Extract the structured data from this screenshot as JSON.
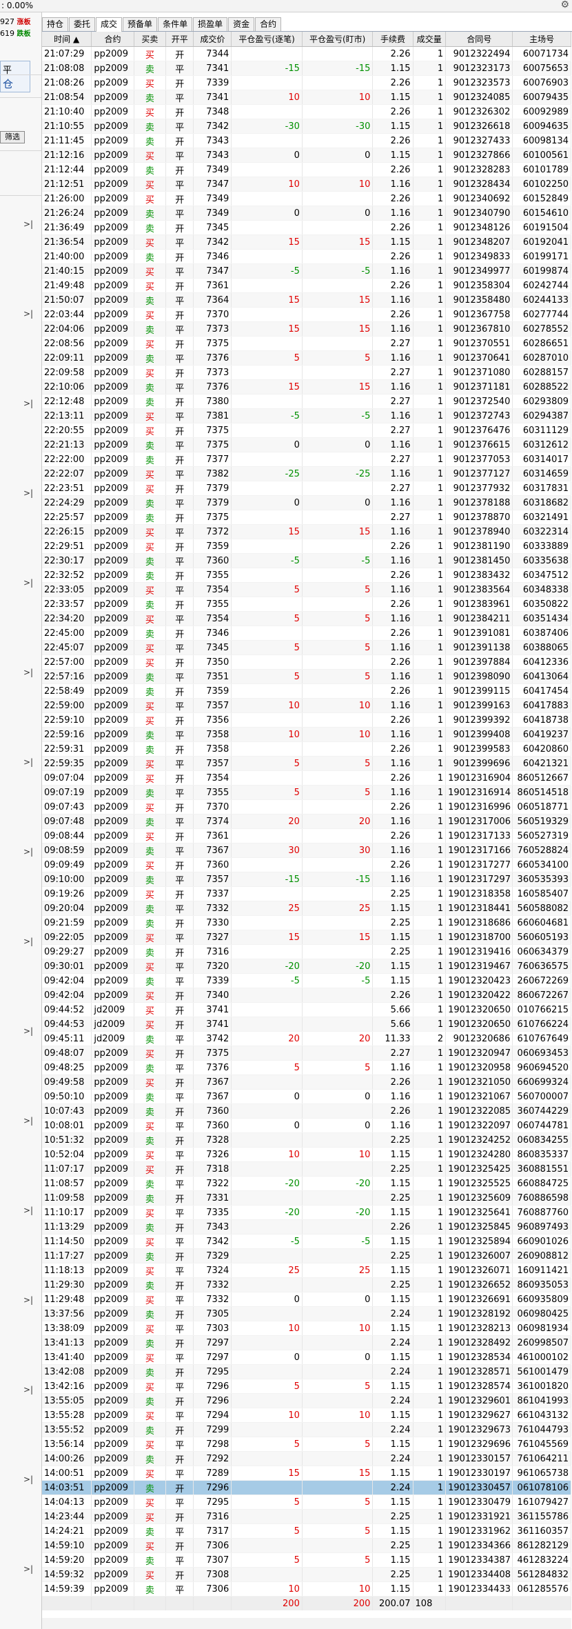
{
  "topbar": {
    "percent": ": 0.00%",
    "settings_icon": "gear-icon"
  },
  "left": {
    "row1_num": "927",
    "row1_tag": "涨板",
    "row2_num": "619",
    "row2_tag": "跌板",
    "box_top": "平",
    "box_bottom": "仓",
    "filter_btn": "筛选",
    "arrow": ">|"
  },
  "tabs": [
    "持仓",
    "委托",
    "成交",
    "预备单",
    "条件单",
    "损盈单",
    "资金",
    "合约"
  ],
  "active_tab": 2,
  "columns": [
    "时间 ▲",
    "合约",
    "买卖",
    "开平",
    "成交价",
    "平仓盈亏(逐笔)",
    "平仓盈亏(盯市)",
    "手续费",
    "成交量",
    "合同号",
    "主场号"
  ],
  "rows": [
    [
      "21:07:29",
      "pp2009",
      "买",
      "开",
      "7344",
      "",
      "",
      "2.26",
      "1",
      "9012322494",
      "60071734"
    ],
    [
      "21:08:08",
      "pp2009",
      "卖",
      "平",
      "7341",
      "-15",
      "-15",
      "1.15",
      "1",
      "9012323173",
      "60075653"
    ],
    [
      "21:08:26",
      "pp2009",
      "买",
      "开",
      "7339",
      "",
      "",
      "2.26",
      "1",
      "9012323573",
      "60076903"
    ],
    [
      "21:08:54",
      "pp2009",
      "卖",
      "平",
      "7341",
      "10",
      "10",
      "1.15",
      "1",
      "9012324085",
      "60079435"
    ],
    [
      "21:10:40",
      "pp2009",
      "买",
      "开",
      "7348",
      "",
      "",
      "2.26",
      "1",
      "9012326302",
      "60092989"
    ],
    [
      "21:10:55",
      "pp2009",
      "卖",
      "平",
      "7342",
      "-30",
      "-30",
      "1.15",
      "1",
      "9012326618",
      "60094635"
    ],
    [
      "21:11:45",
      "pp2009",
      "卖",
      "开",
      "7343",
      "",
      "",
      "2.26",
      "1",
      "9012327433",
      "60098134"
    ],
    [
      "21:12:16",
      "pp2009",
      "买",
      "平",
      "7343",
      "0",
      "0",
      "1.15",
      "1",
      "9012327866",
      "60100561"
    ],
    [
      "21:12:44",
      "pp2009",
      "卖",
      "开",
      "7349",
      "",
      "",
      "2.26",
      "1",
      "9012328283",
      "60101789"
    ],
    [
      "21:12:51",
      "pp2009",
      "买",
      "平",
      "7347",
      "10",
      "10",
      "1.16",
      "1",
      "9012328434",
      "60102250"
    ],
    [
      "21:26:00",
      "pp2009",
      "买",
      "开",
      "7349",
      "",
      "",
      "2.26",
      "1",
      "9012340692",
      "60152849"
    ],
    [
      "21:26:24",
      "pp2009",
      "卖",
      "平",
      "7349",
      "0",
      "0",
      "1.16",
      "1",
      "9012340790",
      "60154610"
    ],
    [
      "21:36:49",
      "pp2009",
      "卖",
      "开",
      "7345",
      "",
      "",
      "2.26",
      "1",
      "9012348126",
      "60191504"
    ],
    [
      "21:36:54",
      "pp2009",
      "买",
      "平",
      "7342",
      "15",
      "15",
      "1.15",
      "1",
      "9012348207",
      "60192041"
    ],
    [
      "21:40:00",
      "pp2009",
      "卖",
      "开",
      "7346",
      "",
      "",
      "2.26",
      "1",
      "9012349833",
      "60199171"
    ],
    [
      "21:40:15",
      "pp2009",
      "买",
      "平",
      "7347",
      "-5",
      "-5",
      "1.16",
      "1",
      "9012349977",
      "60199874"
    ],
    [
      "21:49:48",
      "pp2009",
      "买",
      "开",
      "7361",
      "",
      "",
      "2.26",
      "1",
      "9012358304",
      "60242744"
    ],
    [
      "21:50:07",
      "pp2009",
      "卖",
      "平",
      "7364",
      "15",
      "15",
      "1.16",
      "1",
      "9012358480",
      "60244133"
    ],
    [
      "22:03:44",
      "pp2009",
      "买",
      "开",
      "7370",
      "",
      "",
      "2.26",
      "1",
      "9012367758",
      "60277744"
    ],
    [
      "22:04:06",
      "pp2009",
      "卖",
      "平",
      "7373",
      "15",
      "15",
      "1.16",
      "1",
      "9012367810",
      "60278552"
    ],
    [
      "22:08:56",
      "pp2009",
      "买",
      "开",
      "7375",
      "",
      "",
      "2.27",
      "1",
      "9012370551",
      "60286651"
    ],
    [
      "22:09:11",
      "pp2009",
      "卖",
      "平",
      "7376",
      "5",
      "5",
      "1.16",
      "1",
      "9012370641",
      "60287010"
    ],
    [
      "22:09:58",
      "pp2009",
      "买",
      "开",
      "7373",
      "",
      "",
      "2.27",
      "1",
      "9012371080",
      "60288157"
    ],
    [
      "22:10:06",
      "pp2009",
      "卖",
      "平",
      "7376",
      "15",
      "15",
      "1.16",
      "1",
      "9012371181",
      "60288522"
    ],
    [
      "22:12:48",
      "pp2009",
      "卖",
      "开",
      "7380",
      "",
      "",
      "2.27",
      "1",
      "9012372540",
      "60293809"
    ],
    [
      "22:13:11",
      "pp2009",
      "买",
      "平",
      "7381",
      "-5",
      "-5",
      "1.16",
      "1",
      "9012372743",
      "60294387"
    ],
    [
      "22:20:55",
      "pp2009",
      "买",
      "开",
      "7375",
      "",
      "",
      "2.27",
      "1",
      "9012376476",
      "60311129"
    ],
    [
      "22:21:13",
      "pp2009",
      "卖",
      "平",
      "7375",
      "0",
      "0",
      "1.16",
      "1",
      "9012376615",
      "60312612"
    ],
    [
      "22:22:00",
      "pp2009",
      "卖",
      "开",
      "7377",
      "",
      "",
      "2.27",
      "1",
      "9012377053",
      "60314017"
    ],
    [
      "22:22:07",
      "pp2009",
      "买",
      "平",
      "7382",
      "-25",
      "-25",
      "1.16",
      "1",
      "9012377127",
      "60314659"
    ],
    [
      "22:23:51",
      "pp2009",
      "买",
      "开",
      "7379",
      "",
      "",
      "2.27",
      "1",
      "9012377932",
      "60317831"
    ],
    [
      "22:24:29",
      "pp2009",
      "卖",
      "平",
      "7379",
      "0",
      "0",
      "1.16",
      "1",
      "9012378188",
      "60318682"
    ],
    [
      "22:25:57",
      "pp2009",
      "卖",
      "开",
      "7375",
      "",
      "",
      "2.27",
      "1",
      "9012378870",
      "60321491"
    ],
    [
      "22:26:15",
      "pp2009",
      "买",
      "平",
      "7372",
      "15",
      "15",
      "1.16",
      "1",
      "9012378940",
      "60322314"
    ],
    [
      "22:29:51",
      "pp2009",
      "买",
      "开",
      "7359",
      "",
      "",
      "2.26",
      "1",
      "9012381190",
      "60333889"
    ],
    [
      "22:30:17",
      "pp2009",
      "卖",
      "平",
      "7360",
      "-5",
      "-5",
      "1.16",
      "1",
      "9012381450",
      "60335638"
    ],
    [
      "22:32:52",
      "pp2009",
      "卖",
      "开",
      "7355",
      "",
      "",
      "2.26",
      "1",
      "9012383432",
      "60347512"
    ],
    [
      "22:33:05",
      "pp2009",
      "买",
      "平",
      "7354",
      "5",
      "5",
      "1.16",
      "1",
      "9012383564",
      "60348338"
    ],
    [
      "22:33:57",
      "pp2009",
      "卖",
      "开",
      "7355",
      "",
      "",
      "2.26",
      "1",
      "9012383961",
      "60350822"
    ],
    [
      "22:34:20",
      "pp2009",
      "买",
      "平",
      "7354",
      "5",
      "5",
      "1.16",
      "1",
      "9012384211",
      "60351434"
    ],
    [
      "22:45:00",
      "pp2009",
      "卖",
      "开",
      "7346",
      "",
      "",
      "2.26",
      "1",
      "9012391081",
      "60387406"
    ],
    [
      "22:45:07",
      "pp2009",
      "买",
      "平",
      "7345",
      "5",
      "5",
      "1.16",
      "1",
      "9012391138",
      "60388065"
    ],
    [
      "22:57:00",
      "pp2009",
      "买",
      "开",
      "7350",
      "",
      "",
      "2.26",
      "1",
      "9012397884",
      "60412336"
    ],
    [
      "22:57:16",
      "pp2009",
      "卖",
      "平",
      "7351",
      "5",
      "5",
      "1.16",
      "1",
      "9012398090",
      "60413064"
    ],
    [
      "22:58:49",
      "pp2009",
      "卖",
      "开",
      "7359",
      "",
      "",
      "2.26",
      "1",
      "9012399115",
      "60417454"
    ],
    [
      "22:59:00",
      "pp2009",
      "买",
      "平",
      "7357",
      "10",
      "10",
      "1.16",
      "1",
      "9012399163",
      "60417883"
    ],
    [
      "22:59:10",
      "pp2009",
      "买",
      "开",
      "7356",
      "",
      "",
      "2.26",
      "1",
      "9012399392",
      "60418738"
    ],
    [
      "22:59:16",
      "pp2009",
      "卖",
      "平",
      "7358",
      "10",
      "10",
      "1.16",
      "1",
      "9012399408",
      "60419237"
    ],
    [
      "22:59:31",
      "pp2009",
      "卖",
      "开",
      "7358",
      "",
      "",
      "2.26",
      "1",
      "9012399583",
      "60420860"
    ],
    [
      "22:59:35",
      "pp2009",
      "买",
      "平",
      "7357",
      "5",
      "5",
      "1.16",
      "1",
      "9012399696",
      "60421321"
    ],
    [
      "09:07:04",
      "pp2009",
      "买",
      "开",
      "7354",
      "",
      "",
      "2.26",
      "1",
      "19012316904",
      "860512667"
    ],
    [
      "09:07:19",
      "pp2009",
      "卖",
      "平",
      "7355",
      "5",
      "5",
      "1.16",
      "1",
      "19012316914",
      "860514518"
    ],
    [
      "09:07:43",
      "pp2009",
      "买",
      "开",
      "7370",
      "",
      "",
      "2.26",
      "1",
      "19012316996",
      "060518771"
    ],
    [
      "09:07:48",
      "pp2009",
      "卖",
      "平",
      "7374",
      "20",
      "20",
      "1.16",
      "1",
      "19012317006",
      "560519329"
    ],
    [
      "09:08:44",
      "pp2009",
      "买",
      "开",
      "7361",
      "",
      "",
      "2.26",
      "1",
      "19012317133",
      "560527319"
    ],
    [
      "09:08:59",
      "pp2009",
      "卖",
      "平",
      "7367",
      "30",
      "30",
      "1.16",
      "1",
      "19012317166",
      "760528824"
    ],
    [
      "09:09:49",
      "pp2009",
      "买",
      "开",
      "7360",
      "",
      "",
      "2.26",
      "1",
      "19012317277",
      "660534100"
    ],
    [
      "09:10:00",
      "pp2009",
      "卖",
      "平",
      "7357",
      "-15",
      "-15",
      "1.16",
      "1",
      "19012317297",
      "360535393"
    ],
    [
      "09:19:26",
      "pp2009",
      "买",
      "开",
      "7337",
      "",
      "",
      "2.25",
      "1",
      "19012318358",
      "160585407"
    ],
    [
      "09:20:04",
      "pp2009",
      "卖",
      "平",
      "7332",
      "25",
      "25",
      "1.15",
      "1",
      "19012318441",
      "560588082"
    ],
    [
      "09:21:59",
      "pp2009",
      "卖",
      "开",
      "7330",
      "",
      "",
      "2.25",
      "1",
      "19012318686",
      "660604681"
    ],
    [
      "09:22:05",
      "pp2009",
      "买",
      "平",
      "7327",
      "15",
      "15",
      "1.15",
      "1",
      "19012318700",
      "560605193"
    ],
    [
      "09:29:27",
      "pp2009",
      "卖",
      "开",
      "7316",
      "",
      "",
      "2.25",
      "1",
      "19012319416",
      "060634379"
    ],
    [
      "09:30:01",
      "pp2009",
      "买",
      "平",
      "7320",
      "-20",
      "-20",
      "1.15",
      "1",
      "19012319467",
      "760636575"
    ],
    [
      "09:42:04",
      "pp2009",
      "卖",
      "平",
      "7339",
      "-5",
      "-5",
      "1.15",
      "1",
      "19012320423",
      "260672269"
    ],
    [
      "09:42:04",
      "pp2009",
      "买",
      "开",
      "7340",
      "",
      "",
      "2.26",
      "1",
      "19012320422",
      "860672267"
    ],
    [
      "09:44:52",
      "jd2009",
      "买",
      "开",
      "3741",
      "",
      "",
      "5.66",
      "1",
      "19012320650",
      "010766215"
    ],
    [
      "09:44:53",
      "jd2009",
      "买",
      "开",
      "3741",
      "",
      "",
      "5.66",
      "1",
      "19012320650",
      "610766224"
    ],
    [
      "09:45:11",
      "jd2009",
      "卖",
      "平",
      "3742",
      "20",
      "20",
      "11.33",
      "2",
      "9012320686",
      "610767649"
    ],
    [
      "09:48:07",
      "pp2009",
      "买",
      "开",
      "7375",
      "",
      "",
      "2.27",
      "1",
      "19012320947",
      "060693453"
    ],
    [
      "09:48:25",
      "pp2009",
      "卖",
      "平",
      "7376",
      "5",
      "5",
      "1.16",
      "1",
      "19012320958",
      "960694520"
    ],
    [
      "09:49:58",
      "pp2009",
      "买",
      "开",
      "7367",
      "",
      "",
      "2.26",
      "1",
      "19012321050",
      "660699324"
    ],
    [
      "09:50:10",
      "pp2009",
      "卖",
      "平",
      "7367",
      "0",
      "0",
      "1.16",
      "1",
      "19012321067",
      "560700007"
    ],
    [
      "10:07:43",
      "pp2009",
      "卖",
      "开",
      "7360",
      "",
      "",
      "2.26",
      "1",
      "19012322085",
      "360744229"
    ],
    [
      "10:08:01",
      "pp2009",
      "买",
      "平",
      "7360",
      "0",
      "0",
      "1.16",
      "1",
      "19012322097",
      "060744781"
    ],
    [
      "10:51:32",
      "pp2009",
      "卖",
      "开",
      "7328",
      "",
      "",
      "2.25",
      "1",
      "19012324252",
      "060834255"
    ],
    [
      "10:52:04",
      "pp2009",
      "买",
      "平",
      "7326",
      "10",
      "10",
      "1.15",
      "1",
      "19012324280",
      "860835337"
    ],
    [
      "11:07:17",
      "pp2009",
      "买",
      "开",
      "7318",
      "",
      "",
      "2.25",
      "1",
      "19012325425",
      "360881551"
    ],
    [
      "11:08:57",
      "pp2009",
      "卖",
      "平",
      "7322",
      "-20",
      "-20",
      "1.15",
      "1",
      "19012325525",
      "660884725"
    ],
    [
      "11:09:58",
      "pp2009",
      "卖",
      "开",
      "7331",
      "",
      "",
      "2.25",
      "1",
      "19012325609",
      "760886598"
    ],
    [
      "11:10:17",
      "pp2009",
      "买",
      "平",
      "7335",
      "-20",
      "-20",
      "1.15",
      "1",
      "19012325641",
      "760887760"
    ],
    [
      "11:13:29",
      "pp2009",
      "卖",
      "开",
      "7343",
      "",
      "",
      "2.26",
      "1",
      "19012325845",
      "960897493"
    ],
    [
      "11:14:50",
      "pp2009",
      "买",
      "平",
      "7342",
      "-5",
      "-5",
      "1.15",
      "1",
      "19012325894",
      "660901026"
    ],
    [
      "11:17:27",
      "pp2009",
      "卖",
      "开",
      "7329",
      "",
      "",
      "2.25",
      "1",
      "19012326007",
      "260908812"
    ],
    [
      "11:18:13",
      "pp2009",
      "买",
      "平",
      "7324",
      "25",
      "25",
      "1.15",
      "1",
      "19012326071",
      "160911421"
    ],
    [
      "11:29:30",
      "pp2009",
      "卖",
      "开",
      "7332",
      "",
      "",
      "2.25",
      "1",
      "19012326652",
      "860935053"
    ],
    [
      "11:29:48",
      "pp2009",
      "买",
      "平",
      "7332",
      "0",
      "0",
      "1.15",
      "1",
      "19012326691",
      "660935809"
    ],
    [
      "13:37:56",
      "pp2009",
      "卖",
      "开",
      "7305",
      "",
      "",
      "2.24",
      "1",
      "19012328192",
      "060980425"
    ],
    [
      "13:38:09",
      "pp2009",
      "买",
      "平",
      "7303",
      "10",
      "10",
      "1.15",
      "1",
      "19012328213",
      "060981934"
    ],
    [
      "13:41:13",
      "pp2009",
      "卖",
      "开",
      "7297",
      "",
      "",
      "2.24",
      "1",
      "19012328492",
      "260998507"
    ],
    [
      "13:41:40",
      "pp2009",
      "买",
      "平",
      "7297",
      "0",
      "0",
      "1.15",
      "1",
      "19012328534",
      "461000102"
    ],
    [
      "13:42:08",
      "pp2009",
      "卖",
      "开",
      "7295",
      "",
      "",
      "2.24",
      "1",
      "19012328571",
      "561001479"
    ],
    [
      "13:42:16",
      "pp2009",
      "买",
      "平",
      "7296",
      "5",
      "5",
      "1.15",
      "1",
      "19012328574",
      "361001820"
    ],
    [
      "13:55:05",
      "pp2009",
      "卖",
      "开",
      "7296",
      "",
      "",
      "2.24",
      "1",
      "19012329601",
      "861041993"
    ],
    [
      "13:55:28",
      "pp2009",
      "买",
      "平",
      "7294",
      "10",
      "10",
      "1.15",
      "1",
      "19012329627",
      "661043132"
    ],
    [
      "13:55:52",
      "pp2009",
      "卖",
      "开",
      "7299",
      "",
      "",
      "2.24",
      "1",
      "19012329673",
      "761044793"
    ],
    [
      "13:56:14",
      "pp2009",
      "买",
      "平",
      "7298",
      "5",
      "5",
      "1.15",
      "1",
      "19012329696",
      "761045569"
    ],
    [
      "14:00:26",
      "pp2009",
      "卖",
      "开",
      "7292",
      "",
      "",
      "2.24",
      "1",
      "19012330157",
      "761064211"
    ],
    [
      "14:00:51",
      "pp2009",
      "买",
      "平",
      "7289",
      "15",
      "15",
      "1.15",
      "1",
      "19012330197",
      "961065738"
    ],
    [
      "14:03:51",
      "pp2009",
      "卖",
      "开",
      "7296",
      "",
      "",
      "2.24",
      "1",
      "19012330457",
      "061078106"
    ],
    [
      "14:04:13",
      "pp2009",
      "买",
      "平",
      "7295",
      "5",
      "5",
      "1.15",
      "1",
      "19012330479",
      "161079427"
    ],
    [
      "14:23:44",
      "pp2009",
      "买",
      "开",
      "7316",
      "",
      "",
      "2.25",
      "1",
      "19012331921",
      "361155786"
    ],
    [
      "14:24:21",
      "pp2009",
      "卖",
      "平",
      "7317",
      "5",
      "5",
      "1.15",
      "1",
      "19012331962",
      "361160357"
    ],
    [
      "14:59:10",
      "pp2009",
      "买",
      "开",
      "7306",
      "",
      "",
      "2.25",
      "1",
      "19012334366",
      "861282129"
    ],
    [
      "14:59:20",
      "pp2009",
      "卖",
      "平",
      "7307",
      "5",
      "5",
      "1.15",
      "1",
      "19012334387",
      "461283224"
    ],
    [
      "14:59:32",
      "pp2009",
      "买",
      "开",
      "7308",
      "",
      "",
      "2.25",
      "1",
      "19012334408",
      "561284832"
    ],
    [
      "14:59:39",
      "pp2009",
      "卖",
      "平",
      "7306",
      "10",
      "10",
      "1.15",
      "1",
      "19012334433",
      "061285576"
    ]
  ],
  "selected_row": 99,
  "totals": [
    "",
    "",
    "",
    "",
    "",
    "200",
    "200",
    "200.07",
    "108",
    "",
    ""
  ]
}
